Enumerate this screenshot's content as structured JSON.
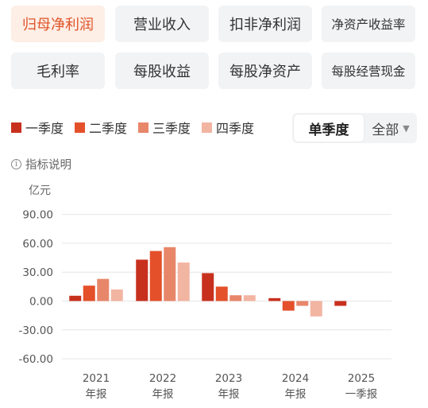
{
  "tabs": [
    {
      "label": "归母净利润",
      "active": true
    },
    {
      "label": "营业收入",
      "active": false
    },
    {
      "label": "扣非净利润",
      "active": false
    },
    {
      "label": "净资产收益率",
      "active": false
    },
    {
      "label": "毛利率",
      "active": false
    },
    {
      "label": "每股收益",
      "active": false
    },
    {
      "label": "每股净资产",
      "active": false
    },
    {
      "label": "每股经营现金",
      "active": false
    }
  ],
  "legend": [
    {
      "label": "一季度",
      "color": "#c8301e"
    },
    {
      "label": "二季度",
      "color": "#e4502a"
    },
    {
      "label": "三季度",
      "color": "#e8866a"
    },
    {
      "label": "四季度",
      "color": "#f2b5a2"
    }
  ],
  "period_toggle": {
    "selected": "单季度",
    "option": "全部",
    "caret": "▼"
  },
  "explain": {
    "icon": "i",
    "label": "指标说明"
  },
  "chart_data": {
    "type": "bar",
    "unit": "亿元",
    "ylim": [
      -60,
      90
    ],
    "yticks": [
      "90.00",
      "60.00",
      "30.00",
      "0.00",
      "-30.00",
      "-60.00"
    ],
    "ytick_values": [
      90,
      60,
      30,
      0,
      -30,
      -60
    ],
    "categories": [
      {
        "year": "2021",
        "period": "年报"
      },
      {
        "year": "2022",
        "period": "年报"
      },
      {
        "year": "2023",
        "period": "年报"
      },
      {
        "year": "2024",
        "period": "年报"
      },
      {
        "year": "2025",
        "period": "一季报"
      }
    ],
    "series": [
      {
        "name": "一季度",
        "values": [
          5.5,
          43,
          29,
          3,
          -5
        ]
      },
      {
        "name": "二季度",
        "values": [
          16,
          52,
          15,
          -10,
          null
        ]
      },
      {
        "name": "三季度",
        "values": [
          23,
          56,
          6,
          -5,
          null
        ]
      },
      {
        "name": "四季度",
        "values": [
          12,
          40,
          6,
          -16,
          null
        ]
      }
    ]
  }
}
